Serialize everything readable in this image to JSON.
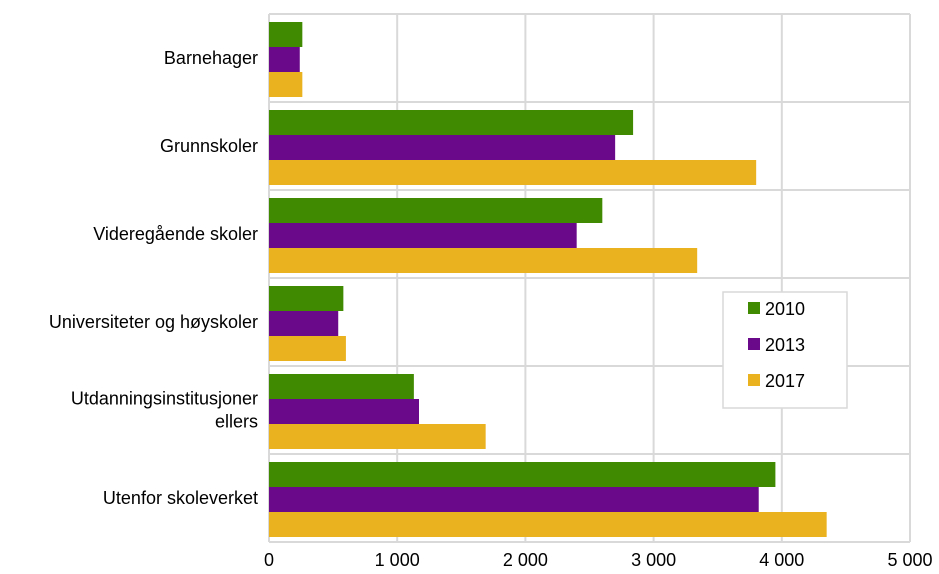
{
  "chart_data": {
    "type": "bar",
    "orientation": "horizontal",
    "categories": [
      [
        "Barnehager"
      ],
      [
        "Grunnskoler"
      ],
      [
        "Videregående skoler"
      ],
      [
        "Universiteter og høyskoler"
      ],
      [
        "Utdanningsinstitusjoner",
        "ellers"
      ],
      [
        "Utenfor skoleverket"
      ]
    ],
    "series": [
      {
        "name": "2010",
        "color": "#3f8a00",
        "values": [
          260,
          2840,
          2600,
          580,
          1130,
          3950
        ]
      },
      {
        "name": "2013",
        "color": "#6a0a8a",
        "values": [
          240,
          2700,
          2400,
          540,
          1170,
          3820
        ]
      },
      {
        "name": "2017",
        "color": "#ebb220",
        "values": [
          260,
          3800,
          3340,
          600,
          1690,
          4350
        ]
      }
    ],
    "xlim": [
      0,
      5000
    ],
    "xticks": [
      0,
      1000,
      2000,
      3000,
      4000,
      5000
    ],
    "xtick_labels": [
      "0",
      "1 000",
      "2 000",
      "3 000",
      "4 000",
      "5 000"
    ],
    "grid": true,
    "legend_position": "right"
  }
}
